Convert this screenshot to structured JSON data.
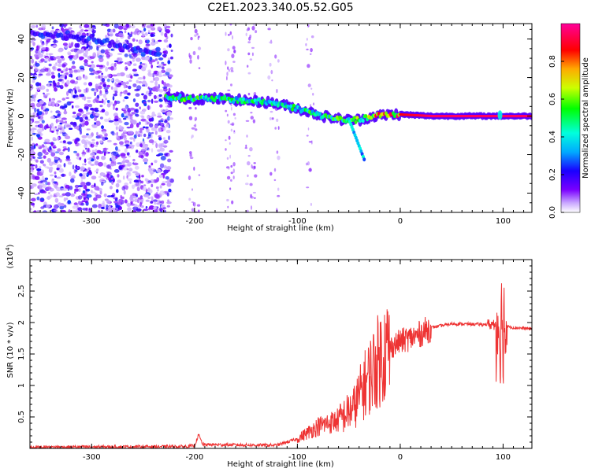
{
  "figure_title": "C2E1.2023.340.05.52.G05",
  "chart_data": [
    {
      "type": "heatmap",
      "xlabel": "Height of straight line (km)",
      "ylabel": "Frequency (Hz)",
      "xlim": [
        -360,
        128
      ],
      "ylim": [
        -50,
        48
      ],
      "x_ticks": [
        -300,
        -200,
        -100,
        0,
        100
      ],
      "y_ticks": [
        -40,
        -20,
        0,
        20,
        40
      ],
      "colorbar": {
        "label": "Normalized spectral amplitude",
        "range": [
          0.0,
          1.0
        ],
        "ticks": [
          0.0,
          0.2,
          0.4,
          0.6,
          0.8
        ],
        "colors": [
          "#ffffff",
          "#7a00ff",
          "#0000ff",
          "#00ffff",
          "#00ff00",
          "#ffff00",
          "#ff0000",
          "#ff00aa"
        ]
      },
      "ridge": [
        {
          "x": -228,
          "y": 10,
          "a": 0.55
        },
        {
          "x": -200,
          "y": 9,
          "a": 0.55
        },
        {
          "x": -175,
          "y": 9,
          "a": 0.5
        },
        {
          "x": -150,
          "y": 8,
          "a": 0.5
        },
        {
          "x": -125,
          "y": 7,
          "a": 0.5
        },
        {
          "x": -100,
          "y": 4,
          "a": 0.5
        },
        {
          "x": -75,
          "y": 0,
          "a": 0.55
        },
        {
          "x": -55,
          "y": -2,
          "a": 0.55
        },
        {
          "x": -40,
          "y": -2,
          "a": 0.6
        },
        {
          "x": -25,
          "y": 0,
          "a": 0.8
        },
        {
          "x": -5,
          "y": 1,
          "a": 0.85
        },
        {
          "x": 30,
          "y": 0,
          "a": 0.95
        },
        {
          "x": 128,
          "y": 0,
          "a": 0.95
        }
      ],
      "upper_trace": [
        {
          "x": -360,
          "y": 43
        },
        {
          "x": -300,
          "y": 40
        },
        {
          "x": -260,
          "y": 35
        },
        {
          "x": -235,
          "y": 31
        }
      ]
    },
    {
      "type": "line",
      "xlabel": "Height of straight line (km)",
      "ylabel": "SNR (10 * v/v)",
      "y_multiplier": "(x10",
      "y_multiplier_exp": "4",
      "y_multiplier_close": ")",
      "xlim": [
        -360,
        128
      ],
      "ylim": [
        0,
        30000
      ],
      "x_ticks": [
        -300,
        -200,
        -100,
        0,
        100
      ],
      "y_ticks": [
        0.5,
        1,
        1.5,
        2,
        2.5
      ],
      "line_color": "#ee3333",
      "envelope": [
        {
          "x": -360,
          "y": 200
        },
        {
          "x": -210,
          "y": 300
        },
        {
          "x": -200,
          "y": 400
        },
        {
          "x": -196,
          "y": 2200
        },
        {
          "x": -192,
          "y": 600
        },
        {
          "x": -120,
          "y": 500
        },
        {
          "x": -100,
          "y": 1500
        },
        {
          "x": -80,
          "y": 3500
        },
        {
          "x": -60,
          "y": 4500
        },
        {
          "x": -45,
          "y": 6500
        },
        {
          "x": -35,
          "y": 10000
        },
        {
          "x": -25,
          "y": 13000
        },
        {
          "x": -15,
          "y": 15500
        },
        {
          "x": 0,
          "y": 17000
        },
        {
          "x": 15,
          "y": 17800
        },
        {
          "x": 30,
          "y": 19200
        },
        {
          "x": 50,
          "y": 19800
        },
        {
          "x": 80,
          "y": 19700
        },
        {
          "x": 94,
          "y": 19700
        },
        {
          "x": 110,
          "y": 19200
        },
        {
          "x": 128,
          "y": 19000
        }
      ]
    }
  ]
}
